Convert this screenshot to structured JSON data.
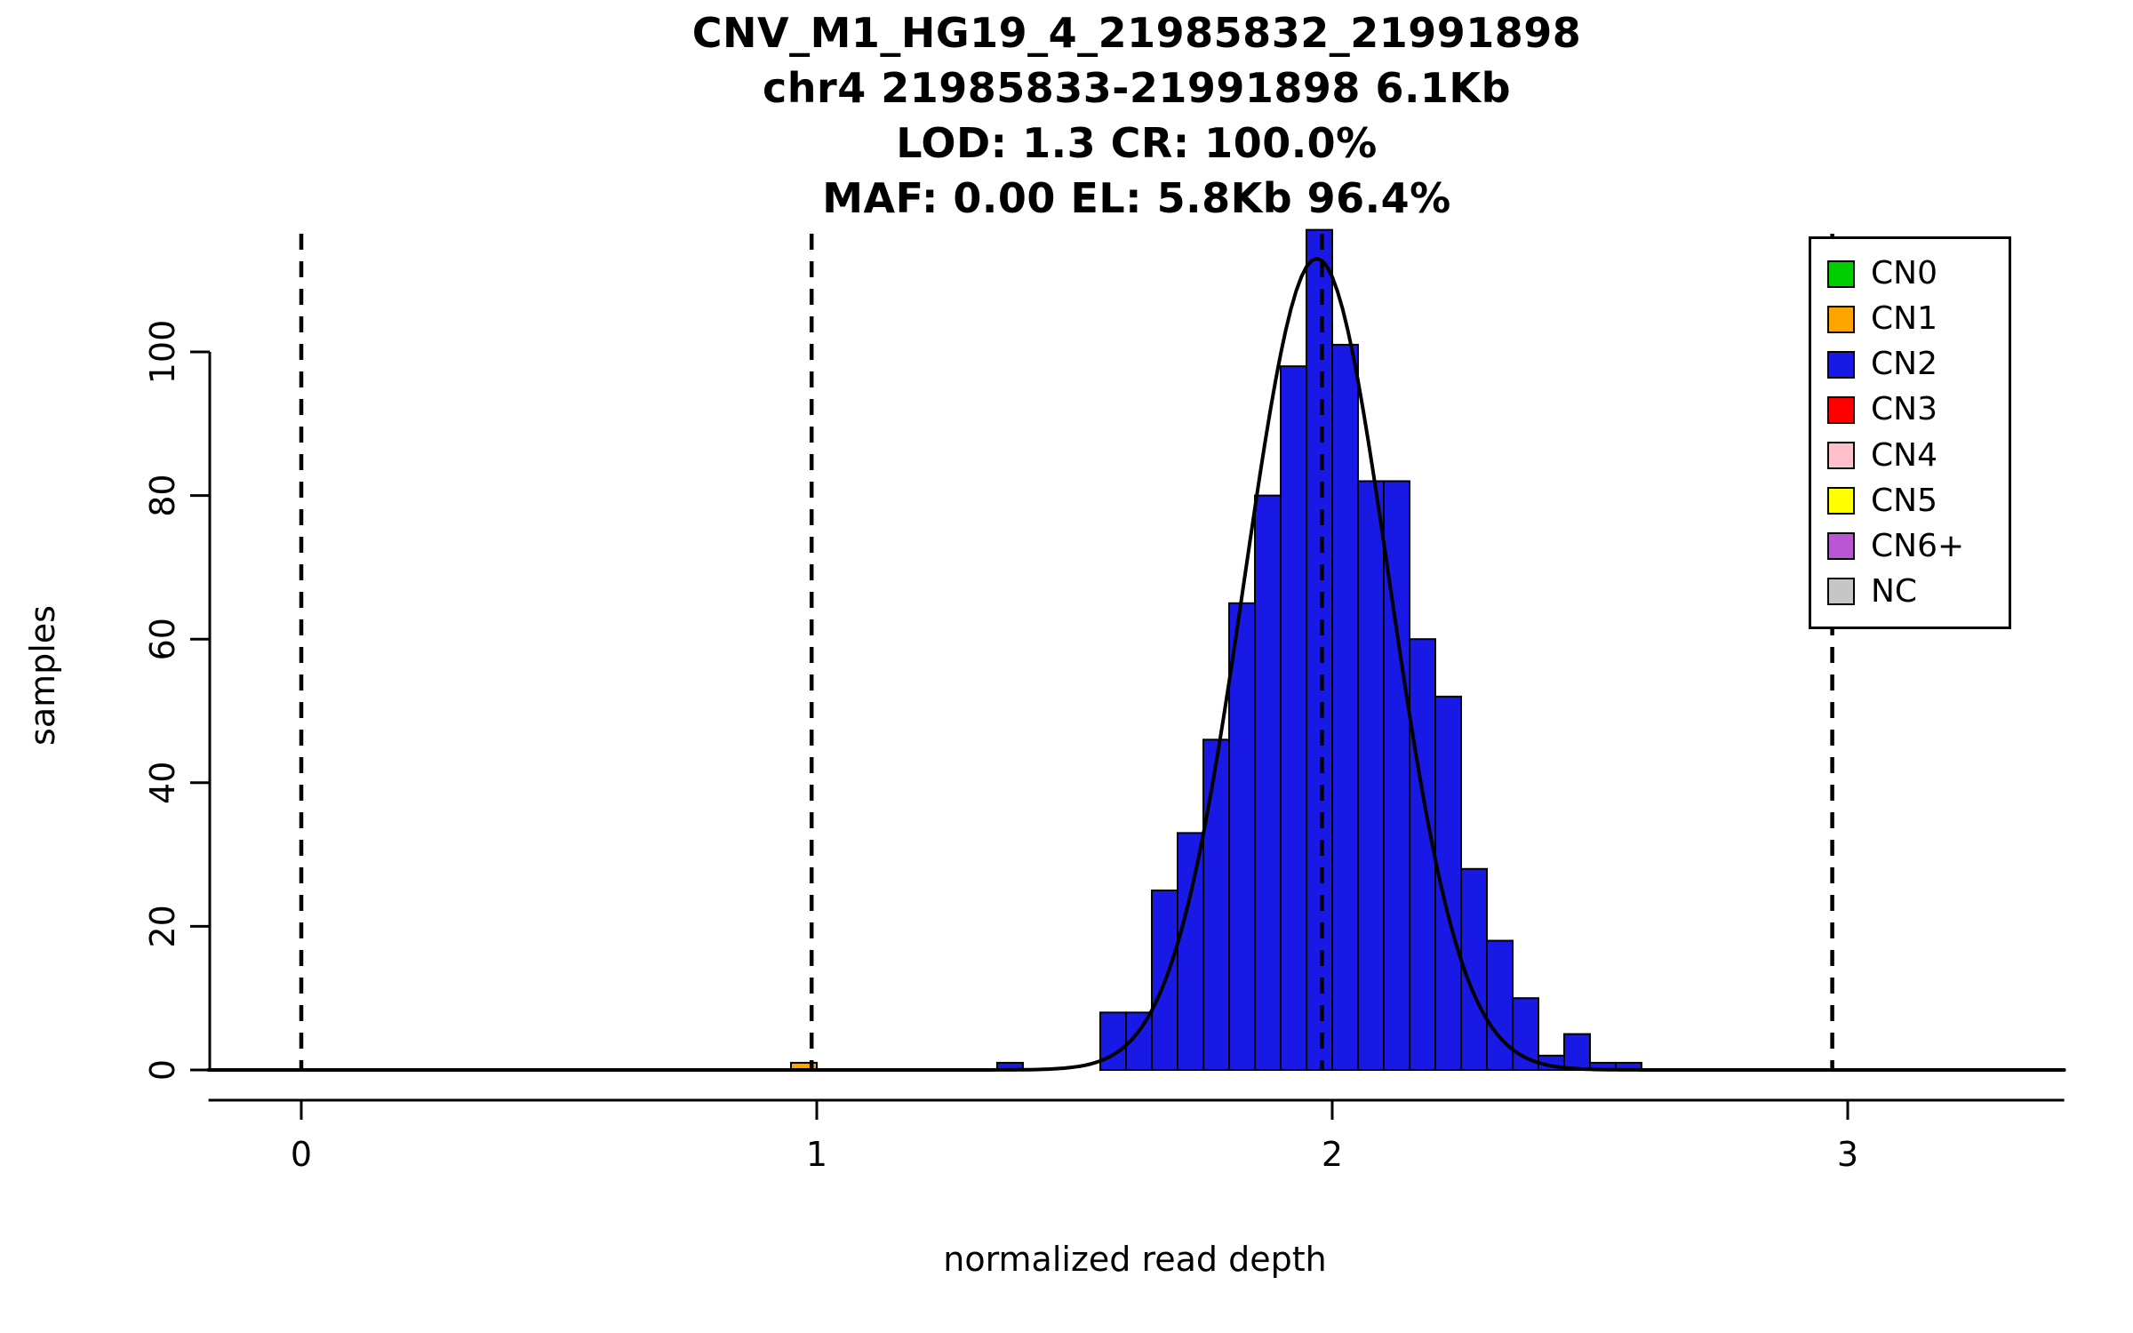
{
  "chart_data": {
    "type": "bar",
    "title_lines": [
      "CNV_M1_HG19_4_21985832_21991898",
      "chr4 21985833-21991898 6.1Kb",
      "LOD: 1.3 CR: 100.0%",
      "MAF: 0.00 EL: 5.8Kb 96.4%"
    ],
    "xlabel": "normalized read depth",
    "ylabel": "samples",
    "xlim": [
      -0.18,
      3.42
    ],
    "ylim": [
      0,
      118
    ],
    "x_ticks": [
      0,
      1,
      2,
      3
    ],
    "y_ticks": [
      0,
      20,
      40,
      60,
      80,
      100
    ],
    "bin_width": 0.05,
    "bars": [
      {
        "x": 0.95,
        "count": 1,
        "cn": "CN1"
      },
      {
        "x": 1.35,
        "count": 1,
        "cn": "CN2"
      },
      {
        "x": 1.55,
        "count": 8,
        "cn": "CN2"
      },
      {
        "x": 1.6,
        "count": 8,
        "cn": "CN2"
      },
      {
        "x": 1.65,
        "count": 25,
        "cn": "CN2"
      },
      {
        "x": 1.7,
        "count": 33,
        "cn": "CN2"
      },
      {
        "x": 1.75,
        "count": 46,
        "cn": "CN2"
      },
      {
        "x": 1.8,
        "count": 65,
        "cn": "CN2"
      },
      {
        "x": 1.85,
        "count": 80,
        "cn": "CN2"
      },
      {
        "x": 1.9,
        "count": 98,
        "cn": "CN2"
      },
      {
        "x": 1.95,
        "count": 117,
        "cn": "CN2"
      },
      {
        "x": 2.0,
        "count": 101,
        "cn": "CN2"
      },
      {
        "x": 2.05,
        "count": 82,
        "cn": "CN2"
      },
      {
        "x": 2.1,
        "count": 82,
        "cn": "CN2"
      },
      {
        "x": 2.15,
        "count": 60,
        "cn": "CN2"
      },
      {
        "x": 2.2,
        "count": 52,
        "cn": "CN2"
      },
      {
        "x": 2.25,
        "count": 28,
        "cn": "CN2"
      },
      {
        "x": 2.3,
        "count": 18,
        "cn": "CN2"
      },
      {
        "x": 2.35,
        "count": 10,
        "cn": "CN2"
      },
      {
        "x": 2.4,
        "count": 2,
        "cn": "CN2"
      },
      {
        "x": 2.45,
        "count": 5,
        "cn": "CN2"
      },
      {
        "x": 2.5,
        "count": 1,
        "cn": "CN2"
      },
      {
        "x": 2.55,
        "count": 1,
        "cn": "CN2"
      }
    ],
    "fit_curve": {
      "mean": 1.97,
      "sd": 0.14,
      "amplitude": 113
    },
    "dashed_lines": [
      0,
      0.99,
      1.98,
      2.97
    ],
    "legend": [
      {
        "label": "CN0",
        "color": "#00CD00"
      },
      {
        "label": "CN1",
        "color": "#FFA500"
      },
      {
        "label": "CN2",
        "color": "#1919E6"
      },
      {
        "label": "CN3",
        "color": "#FF0000"
      },
      {
        "label": "CN4",
        "color": "#FFC0CB"
      },
      {
        "label": "CN5",
        "color": "#FFFF00"
      },
      {
        "label": "CN6+",
        "color": "#BA55D3"
      },
      {
        "label": "NC",
        "color": "#C6C6C6"
      }
    ],
    "grid": false,
    "legend_position": "top-right",
    "line_color": "#000000",
    "axis_color": "#000000"
  }
}
